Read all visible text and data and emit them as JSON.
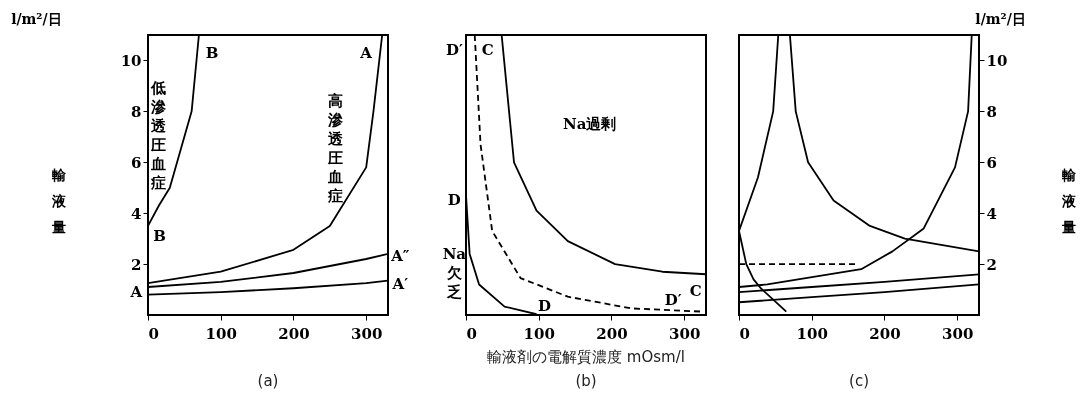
{
  "chart_data": [
    {
      "type": "line",
      "title": "l/m²/日",
      "ylabel": "輸液量",
      "xlim": [
        0,
        330
      ],
      "ylim": [
        0,
        11
      ],
      "xticks": [
        0,
        100,
        200,
        300
      ],
      "yticks": [
        2,
        4,
        6,
        8,
        10
      ],
      "series": [
        {
          "color": "#000000",
          "x": [
            0,
            100,
            200,
            250,
            300,
            310,
            322
          ],
          "values": [
            1.25,
            1.7,
            2.56,
            3.5,
            5.8,
            8,
            11
          ]
        },
        {
          "color": "#000000",
          "x": [
            0,
            100,
            200,
            300,
            330
          ],
          "values": [
            1.1,
            1.3,
            1.65,
            2.2,
            2.4
          ]
        },
        {
          "color": "#000000",
          "x": [
            0,
            100,
            200,
            300,
            330
          ],
          "values": [
            0.8,
            0.9,
            1.05,
            1.25,
            1.35
          ]
        },
        {
          "color": "#000000",
          "x": [
            0,
            15,
            30,
            45,
            60,
            70
          ],
          "values": [
            3.5,
            4.3,
            5,
            6.5,
            8,
            11
          ]
        }
      ],
      "annotations": [
        "低滲透圧血症",
        "高滲透圧血症",
        "B",
        "B",
        "A",
        "A",
        "A″",
        "A′",
        "(a)"
      ]
    },
    {
      "type": "line",
      "xlabel": "輸液剤の電解質濃度 mOsm/l",
      "xlim": [
        0,
        330
      ],
      "ylim": [
        0,
        11
      ],
      "xticks": [
        0,
        100,
        200,
        300
      ],
      "tick_labels": "x",
      "series": [
        {
          "color": "#000000",
          "x": [
            49,
            66,
            97,
            140,
            205,
            270,
            330
          ],
          "values": [
            11,
            6,
            4.1,
            2.9,
            2,
            1.7,
            1.6
          ]
        },
        {
          "color": "#000000",
          "line_style": "dashed",
          "x": [
            12,
            20,
            36,
            75,
            140,
            227,
            327
          ],
          "values": [
            11,
            6.7,
            3.3,
            1.45,
            0.72,
            0.26,
            0.13
          ]
        },
        {
          "color": "#000000",
          "x": [
            0,
            5,
            18,
            53,
            97
          ],
          "values": [
            4.7,
            2.4,
            1.2,
            0.33,
            0.03
          ]
        }
      ],
      "annotations": [
        "D′",
        "C",
        "Na過剰",
        "D",
        "Na欠乏",
        "D",
        "D′",
        "C",
        "(b)"
      ]
    },
    {
      "type": "line",
      "title": "l/m²/日",
      "y2label": "輸液量",
      "xlim": [
        0,
        330
      ],
      "y2lim": [
        0,
        11
      ],
      "xticks": [
        0,
        100,
        200,
        300
      ],
      "y2ticks": [
        2,
        4,
        6,
        8,
        10
      ],
      "series": [
        {
          "color": "#000000",
          "axis": "y2",
          "x": [
            0,
            39,
            168,
            211,
            254,
            297,
            315,
            320
          ],
          "values": [
            1.1,
            1.2,
            1.8,
            2.5,
            3.4,
            5.8,
            8,
            11
          ]
        },
        {
          "color": "#000000",
          "axis": "y2",
          "x": [
            0,
            100,
            200,
            330
          ],
          "values": [
            0.9,
            1.1,
            1.3,
            1.6
          ]
        },
        {
          "color": "#000000",
          "axis": "y2",
          "x": [
            0,
            100,
            200,
            330
          ],
          "values": [
            0.5,
            0.7,
            0.9,
            1.2
          ]
        },
        {
          "color": "#000000",
          "axis": "y2",
          "x": [
            0,
            26,
            47,
            54
          ],
          "values": [
            3.3,
            5.4,
            8,
            11
          ]
        },
        {
          "color": "#000000",
          "axis": "y2",
          "x": [
            70,
            78,
            95,
            130,
            180,
            228,
            330
          ],
          "values": [
            11,
            8,
            6,
            4.5,
            3.5,
            3,
            2.5
          ]
        },
        {
          "color": "#000000",
          "axis": "y2",
          "x": [
            0,
            10,
            20,
            30,
            65
          ],
          "values": [
            3.3,
            2,
            1.4,
            1.05,
            0.13
          ]
        },
        {
          "color": "#000000",
          "axis": "y2",
          "line_style": "dashed",
          "x": [
            0,
            165
          ],
          "values": [
            2,
            2
          ]
        }
      ],
      "annotations": [
        "(c)"
      ]
    }
  ]
}
